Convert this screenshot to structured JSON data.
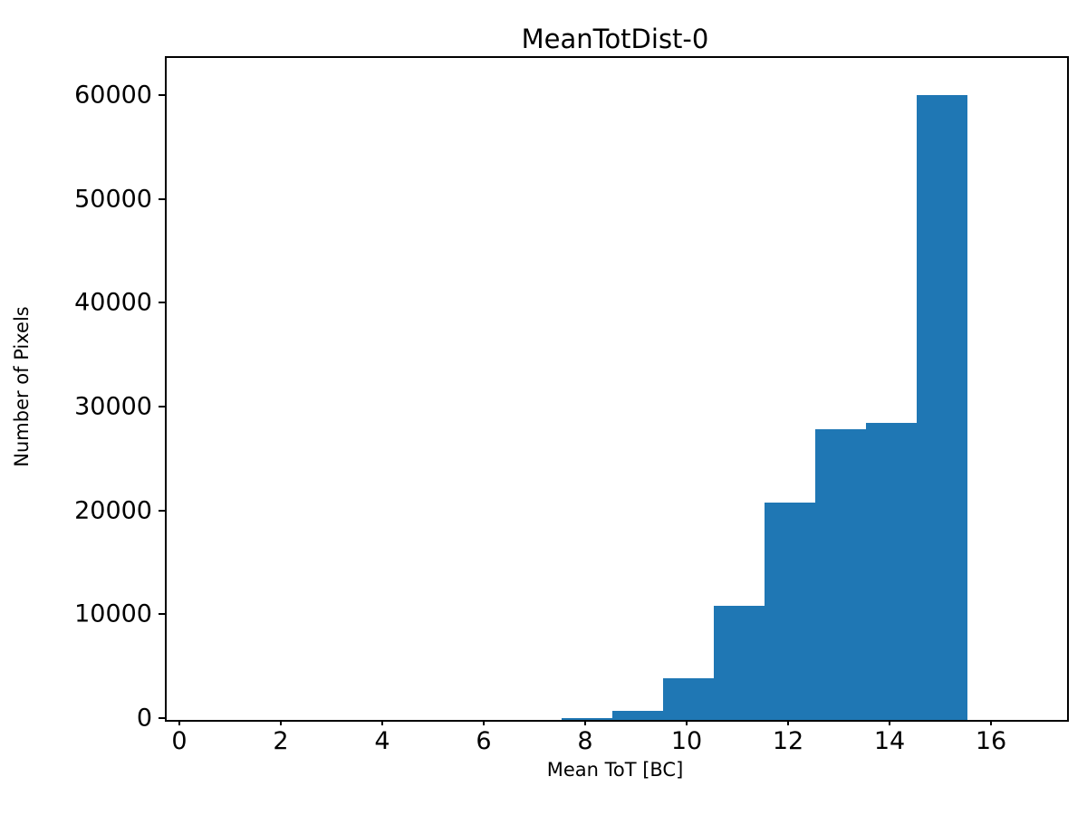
{
  "chart_data": {
    "type": "bar",
    "subtype": "histogram",
    "title": "MeanTotDist-0",
    "xlabel": "Mean ToT [BC]",
    "ylabel": "Number of Pixels",
    "bin_edges": [
      7.5,
      8.5,
      9.5,
      10.5,
      11.5,
      12.5,
      13.5,
      14.5,
      15.5
    ],
    "values": [
      180,
      850,
      4000,
      10950,
      20900,
      28000,
      28600,
      60200
    ],
    "xlim": [
      -0.286,
      17.464
    ],
    "ylim": [
      0,
      63750
    ],
    "xticks": [
      0,
      2,
      4,
      6,
      8,
      10,
      12,
      14,
      16
    ],
    "yticks": [
      0,
      10000,
      20000,
      30000,
      40000,
      50000,
      60000
    ],
    "bar_color": "#1f77b4",
    "axis_color": "#000000",
    "background_color": "#ffffff",
    "grid": false,
    "legend": null
  }
}
